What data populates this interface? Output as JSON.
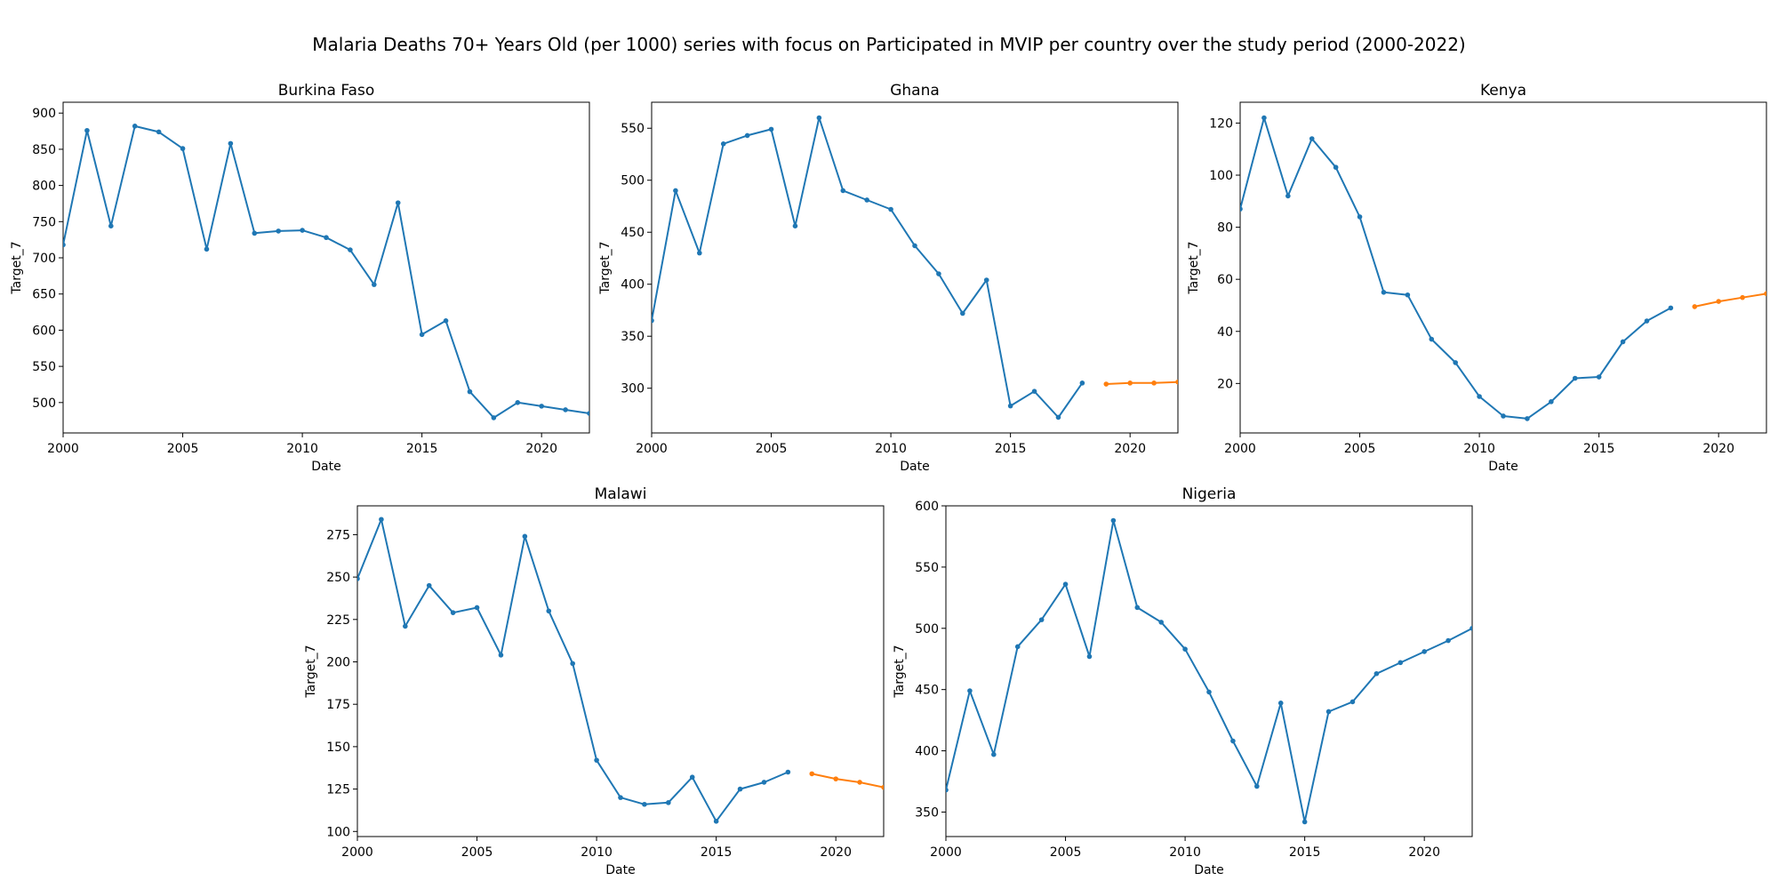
{
  "suptitle": "Malaria Deaths 70+ Years Old (per 1000) series with focus on Participated in MVIP per country over the study period (2000-2022)",
  "colors": {
    "series": [
      "#1f77b4",
      "#ff7f0e"
    ],
    "axes": "#000000"
  },
  "chart_data": [
    {
      "type": "line",
      "title": "Burkina Faso",
      "xlabel": "Date",
      "ylabel": "Target_7",
      "xlim": [
        2000,
        2022
      ],
      "ylim": [
        458,
        915
      ],
      "xticks": [
        2000,
        2005,
        2010,
        2015,
        2020
      ],
      "yticks": [
        500,
        550,
        600,
        650,
        700,
        750,
        800,
        850,
        900
      ],
      "grid": false,
      "series": [
        {
          "x": [
            2000,
            2001,
            2002,
            2003,
            2004,
            2005,
            2006,
            2007,
            2008,
            2009,
            2010,
            2011,
            2012,
            2013,
            2014,
            2015,
            2016,
            2017,
            2018,
            2019,
            2020,
            2021,
            2022
          ],
          "values": [
            718,
            876,
            744,
            882,
            874,
            851,
            712,
            858,
            734,
            737,
            738,
            728,
            711,
            663,
            776,
            594,
            613,
            515,
            479,
            500,
            495,
            490,
            485
          ]
        }
      ]
    },
    {
      "type": "line",
      "title": "Ghana",
      "xlabel": "Date",
      "ylabel": "Target_7",
      "xlim": [
        2000,
        2022
      ],
      "ylim": [
        257,
        575
      ],
      "xticks": [
        2000,
        2005,
        2010,
        2015,
        2020
      ],
      "yticks": [
        300,
        350,
        400,
        450,
        500,
        550
      ],
      "grid": false,
      "series": [
        {
          "x": [
            2000,
            2001,
            2002,
            2003,
            2004,
            2005,
            2006,
            2007,
            2008,
            2009,
            2010,
            2011,
            2012,
            2013,
            2014,
            2015,
            2016,
            2017,
            2018
          ],
          "values": [
            365,
            490,
            430,
            535,
            543,
            549,
            456,
            560,
            490,
            481,
            472,
            437,
            410,
            372,
            404,
            283,
            297,
            272,
            305
          ]
        },
        {
          "x": [
            2019,
            2020,
            2021,
            2022
          ],
          "values": [
            304,
            305,
            305,
            306
          ]
        }
      ]
    },
    {
      "type": "line",
      "title": "Kenya",
      "xlabel": "Date",
      "ylabel": "Target_7",
      "xlim": [
        2000,
        2022
      ],
      "ylim": [
        1,
        128
      ],
      "xticks": [
        2000,
        2005,
        2010,
        2015,
        2020
      ],
      "yticks": [
        20,
        40,
        60,
        80,
        100,
        120
      ],
      "grid": false,
      "series": [
        {
          "x": [
            2000,
            2001,
            2002,
            2003,
            2004,
            2005,
            2006,
            2007,
            2008,
            2009,
            2010,
            2011,
            2012,
            2013,
            2014,
            2015,
            2016,
            2017,
            2018
          ],
          "values": [
            87,
            122,
            92,
            114,
            103,
            84,
            55,
            54,
            37,
            28,
            15,
            7.5,
            6.5,
            13,
            22,
            22.5,
            36,
            44,
            49
          ]
        },
        {
          "x": [
            2019,
            2020,
            2021,
            2022
          ],
          "values": [
            49.5,
            51.5,
            53,
            54.5
          ]
        }
      ]
    },
    {
      "type": "line",
      "title": "Malawi",
      "xlabel": "Date",
      "ylabel": "Target_7",
      "xlim": [
        2000,
        2022
      ],
      "ylim": [
        97,
        292
      ],
      "xticks": [
        2000,
        2005,
        2010,
        2015,
        2020
      ],
      "yticks": [
        100,
        125,
        150,
        175,
        200,
        225,
        250,
        275
      ],
      "grid": false,
      "series": [
        {
          "x": [
            2000,
            2001,
            2002,
            2003,
            2004,
            2005,
            2006,
            2007,
            2008,
            2009,
            2010,
            2011,
            2012,
            2013,
            2014,
            2015,
            2016,
            2017,
            2018
          ],
          "values": [
            249,
            284,
            221,
            245,
            229,
            232,
            204,
            274,
            230,
            199,
            142,
            120,
            116,
            117,
            132,
            106,
            125,
            129,
            135
          ]
        },
        {
          "x": [
            2019,
            2020,
            2021,
            2022
          ],
          "values": [
            134,
            131,
            129,
            126
          ]
        }
      ]
    },
    {
      "type": "line",
      "title": "Nigeria",
      "xlabel": "Date",
      "ylabel": "Target_7",
      "xlim": [
        2000,
        2022
      ],
      "ylim": [
        330,
        600
      ],
      "xticks": [
        2000,
        2005,
        2010,
        2015,
        2020
      ],
      "yticks": [
        350,
        400,
        450,
        500,
        550,
        600
      ],
      "grid": false,
      "series": [
        {
          "x": [
            2000,
            2001,
            2002,
            2003,
            2004,
            2005,
            2006,
            2007,
            2008,
            2009,
            2010,
            2011,
            2012,
            2013,
            2014,
            2015,
            2016,
            2017,
            2018,
            2019,
            2020,
            2021,
            2022
          ],
          "values": [
            368,
            449,
            397,
            485,
            507,
            536,
            477,
            588,
            517,
            505,
            483,
            448,
            408,
            371,
            439,
            342,
            432,
            440,
            463,
            472,
            481,
            490,
            500
          ]
        }
      ]
    }
  ]
}
